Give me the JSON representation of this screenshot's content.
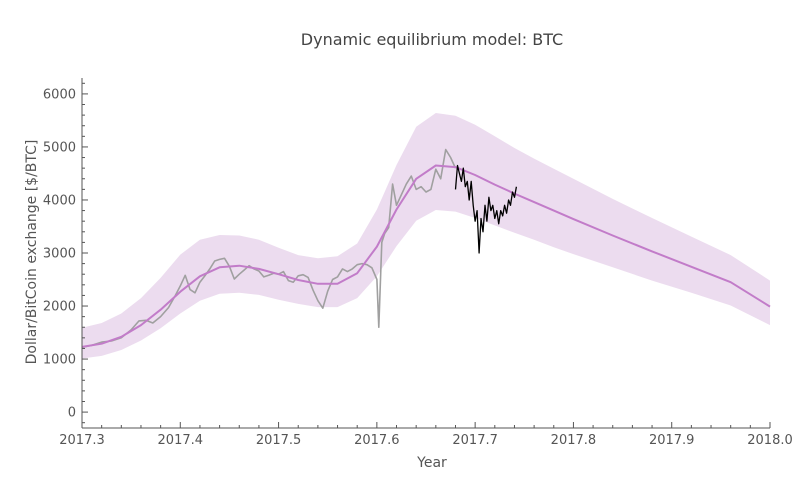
{
  "chart_data": {
    "type": "line",
    "title": "Dynamic equilibrium model: BTC",
    "xlabel": "Year",
    "ylabel": "Dollar/BitCoin exchange [$/BTC]",
    "xlim": [
      2017.3,
      2018.0
    ],
    "ylim": [
      -300,
      6300
    ],
    "x_ticks": [
      2017.3,
      2017.4,
      2017.5,
      2017.6,
      2017.7,
      2017.8,
      2017.9,
      2018.0
    ],
    "x_tick_labels": [
      "2017.3",
      "2017.4",
      "2017.5",
      "2017.6",
      "2017.7",
      "2017.8",
      "2017.9",
      "2018.0"
    ],
    "y_ticks": [
      0,
      1000,
      2000,
      3000,
      4000,
      5000,
      6000
    ],
    "y_tick_labels": [
      "0",
      "1000",
      "2000",
      "3000",
      "4000",
      "5000",
      "6000"
    ],
    "grid": false,
    "colors": {
      "model": "#c27cc9",
      "band": "#ecdcef",
      "data_gray": "#a0a0a0",
      "data_black": "#000000",
      "axis": "#555555"
    },
    "model": {
      "x": [
        2017.3,
        2017.32,
        2017.34,
        2017.36,
        2017.38,
        2017.4,
        2017.42,
        2017.44,
        2017.46,
        2017.48,
        2017.5,
        2017.52,
        2017.54,
        2017.56,
        2017.58,
        2017.6,
        2017.62,
        2017.64,
        2017.66,
        2017.68,
        2017.7,
        2017.72,
        2017.74,
        2017.76,
        2017.78,
        2017.8,
        2017.84,
        2017.88,
        2017.92,
        2017.96,
        2018.0
      ],
      "y": [
        1230,
        1290,
        1420,
        1640,
        1930,
        2270,
        2560,
        2730,
        2760,
        2700,
        2600,
        2490,
        2420,
        2420,
        2620,
        3120,
        3820,
        4400,
        4650,
        4620,
        4470,
        4290,
        4120,
        3960,
        3800,
        3640,
        3330,
        3030,
        2740,
        2450,
        1990
      ]
    },
    "band": {
      "x": [
        2017.3,
        2017.32,
        2017.34,
        2017.36,
        2017.38,
        2017.4,
        2017.42,
        2017.44,
        2017.46,
        2017.48,
        2017.5,
        2017.52,
        2017.54,
        2017.56,
        2017.58,
        2017.6,
        2017.62,
        2017.64,
        2017.66,
        2017.68,
        2017.7,
        2017.72,
        2017.74,
        2017.76,
        2017.78,
        2017.8,
        2017.84,
        2017.88,
        2017.92,
        2017.96,
        2018.0
      ],
      "upper": [
        1590,
        1680,
        1860,
        2150,
        2530,
        2970,
        3250,
        3340,
        3330,
        3250,
        3100,
        2960,
        2900,
        2940,
        3180,
        3820,
        4660,
        5380,
        5640,
        5590,
        5420,
        5200,
        4980,
        4780,
        4590,
        4400,
        4020,
        3660,
        3310,
        2960,
        2480
      ],
      "lower": [
        1010,
        1060,
        1170,
        1350,
        1580,
        1860,
        2100,
        2230,
        2250,
        2210,
        2120,
        2040,
        1980,
        1980,
        2150,
        2560,
        3130,
        3610,
        3810,
        3780,
        3660,
        3520,
        3380,
        3250,
        3110,
        2980,
        2730,
        2480,
        2250,
        2010,
        1640
      ]
    },
    "series": [
      {
        "x": [
          2017.3,
          2017.31,
          2017.32,
          2017.33,
          2017.34,
          2017.35,
          2017.358,
          2017.365,
          2017.372,
          2017.38,
          2017.388,
          2017.395,
          2017.4,
          2017.405,
          2017.41,
          2017.415,
          2017.42,
          2017.425,
          2017.43,
          2017.435,
          2017.44,
          2017.445,
          2017.45,
          2017.455,
          2017.46,
          2017.465,
          2017.47,
          2017.475,
          2017.48,
          2017.485,
          2017.49,
          2017.495,
          2017.5,
          2017.505,
          2017.51,
          2017.515,
          2017.52,
          2017.525,
          2017.53,
          2017.535,
          2017.54,
          2017.545,
          2017.55,
          2017.555,
          2017.56,
          2017.565,
          2017.57,
          2017.575,
          2017.58,
          2017.585,
          2017.59,
          2017.595,
          2017.6,
          2017.602,
          2017.605,
          2017.608,
          2017.612,
          2017.616,
          2017.62,
          2017.625,
          2017.63,
          2017.635,
          2017.64,
          2017.645,
          2017.65,
          2017.655,
          2017.66,
          2017.665,
          2017.67,
          2017.675,
          2017.68
        ],
        "y": [
          1220,
          1260,
          1320,
          1340,
          1400,
          1550,
          1720,
          1730,
          1680,
          1800,
          1970,
          2200,
          2380,
          2580,
          2310,
          2250,
          2450,
          2570,
          2700,
          2850,
          2880,
          2900,
          2750,
          2510,
          2600,
          2680,
          2760,
          2700,
          2660,
          2550,
          2580,
          2620,
          2600,
          2650,
          2480,
          2450,
          2570,
          2590,
          2540,
          2300,
          2100,
          1960,
          2280,
          2500,
          2550,
          2700,
          2650,
          2700,
          2780,
          2800,
          2780,
          2720,
          2500,
          1600,
          3200,
          3370,
          3480,
          4300,
          3900,
          4100,
          4300,
          4450,
          4200,
          4250,
          4150,
          4200,
          4580,
          4400,
          4950,
          4800,
          4600
        ]
      },
      {
        "x": [
          2017.68,
          2017.682,
          2017.684,
          2017.686,
          2017.688,
          2017.69,
          2017.692,
          2017.694,
          2017.696,
          2017.698,
          2017.7,
          2017.702,
          2017.704,
          2017.706,
          2017.708,
          2017.71,
          2017.712,
          2017.714,
          2017.716,
          2017.718,
          2017.72,
          2017.722,
          2017.724,
          2017.726,
          2017.728,
          2017.73,
          2017.732,
          2017.734,
          2017.736,
          2017.738,
          2017.74,
          2017.742
        ],
        "y": [
          4200,
          4650,
          4500,
          4350,
          4600,
          4250,
          4350,
          4000,
          4350,
          3900,
          3600,
          3800,
          3000,
          3650,
          3400,
          3900,
          3600,
          4050,
          3800,
          3900,
          3650,
          3800,
          3550,
          3800,
          3700,
          3900,
          3750,
          4000,
          3900,
          4150,
          4050,
          4250
        ]
      }
    ]
  }
}
